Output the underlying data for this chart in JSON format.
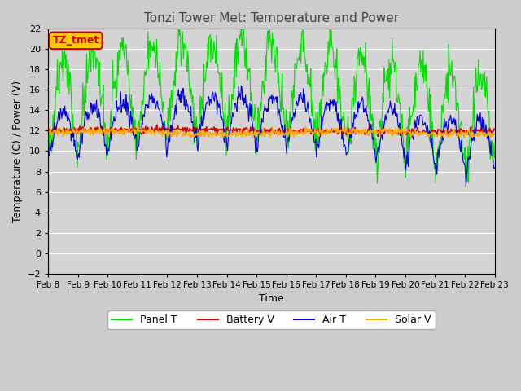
{
  "title": "Tonzi Tower Met: Temperature and Power",
  "xlabel": "Time",
  "ylabel": "Temperature (C) / Power (V)",
  "ylim": [
    -2,
    22
  ],
  "yticks": [
    -2,
    0,
    2,
    4,
    6,
    8,
    10,
    12,
    14,
    16,
    18,
    20,
    22
  ],
  "n_days": 15,
  "xtick_labels": [
    "Feb 8",
    "Feb 9",
    "Feb 10",
    "Feb 11",
    "Feb 12",
    "Feb 13",
    "Feb 14",
    "Feb 15",
    "Feb 16",
    "Feb 17",
    "Feb 18",
    "Feb 19",
    "Feb 20",
    "Feb 21",
    "Feb 22",
    "Feb 23"
  ],
  "legend_labels": [
    "Panel T",
    "Battery V",
    "Air T",
    "Solar V"
  ],
  "legend_colors": [
    "#00dd00",
    "#dd0000",
    "#0000dd",
    "#ffaa00"
  ],
  "fig_bg_color": "#cccccc",
  "plot_bg_color": "#d4d4d4",
  "grid_color": "#ffffff",
  "timezone_label": "TZ_tmet",
  "timezone_box_color": "#ffcc00",
  "timezone_text_color": "#cc0000",
  "title_color": "#444444"
}
